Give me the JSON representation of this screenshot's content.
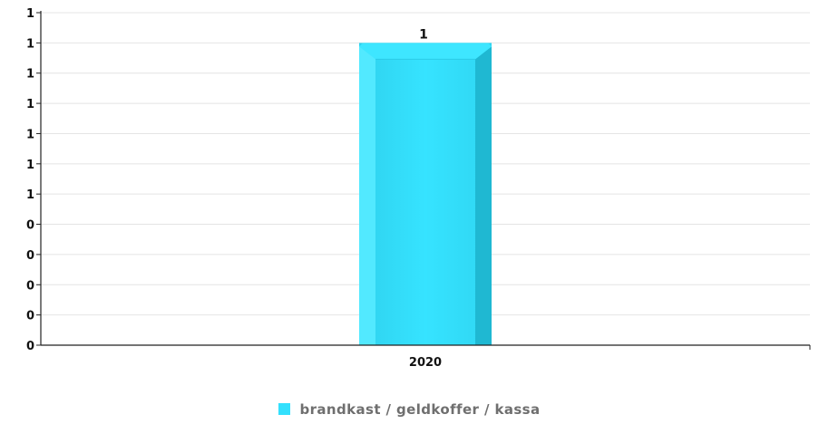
{
  "chart_data": {
    "type": "bar",
    "categories": [
      "2020"
    ],
    "series": [
      {
        "name": "brandkast / geldkoffer / kassa",
        "values": [
          1
        ],
        "color": "#33e0fd"
      }
    ],
    "data_labels": [
      "1"
    ],
    "y_tick_labels": [
      "0",
      "0",
      "0",
      "0",
      "0",
      "1",
      "1",
      "1",
      "1",
      "1",
      "1",
      "1"
    ],
    "ylim": [
      0,
      1.1
    ],
    "grid": true,
    "legend_position": "bottom-center",
    "xlabel": "",
    "ylabel": "",
    "title": ""
  }
}
